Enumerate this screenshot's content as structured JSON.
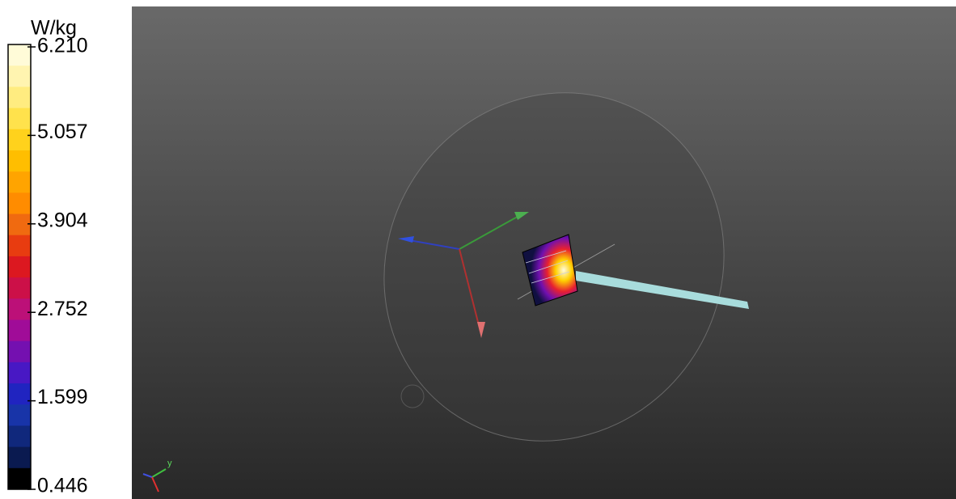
{
  "colorbar": {
    "unit": "W/kg",
    "ticks": [
      "6.210",
      "5.057",
      "3.904",
      "2.752",
      "1.599",
      "0.446"
    ]
  },
  "axes_gizmo": {
    "label": "y"
  }
}
